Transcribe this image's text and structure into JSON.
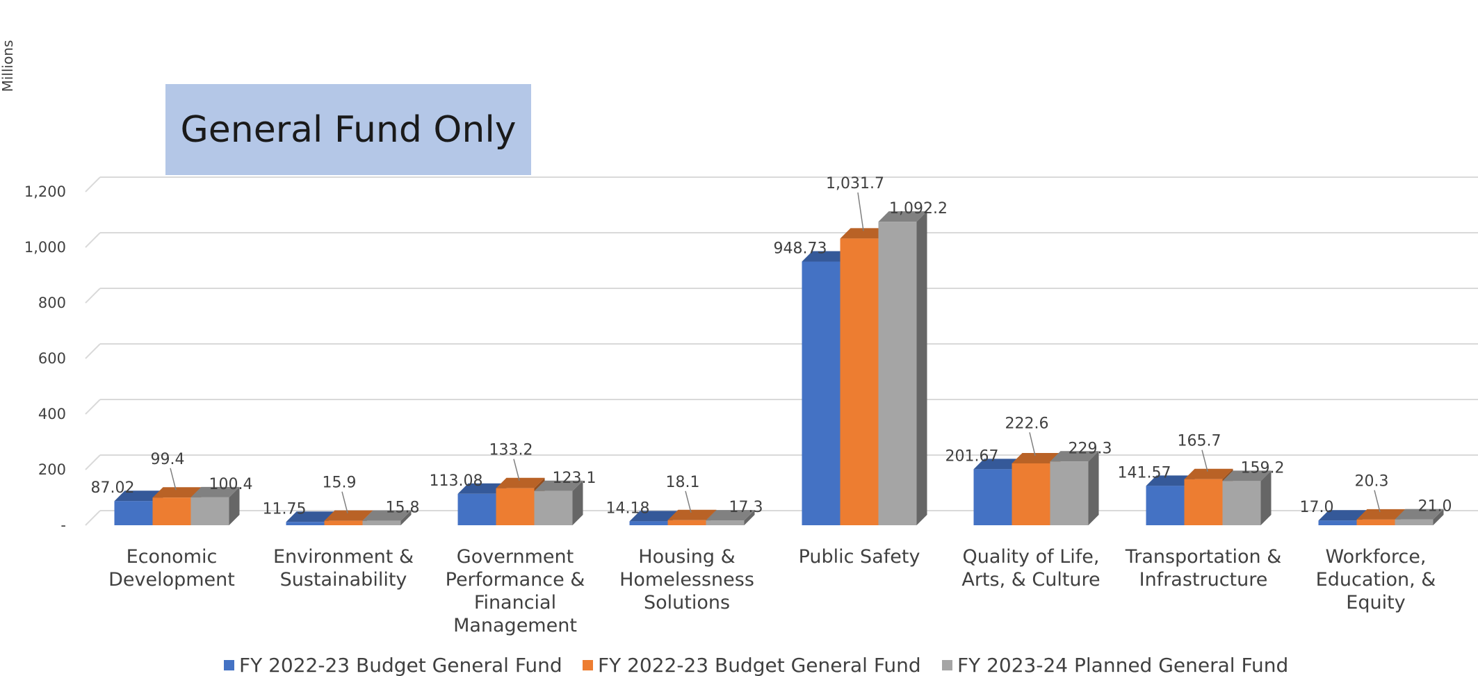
{
  "chart_data": {
    "type": "bar",
    "title": "General Fund Only",
    "ylabel": "Millions",
    "xlabel": "",
    "ylim": [
      0,
      1200
    ],
    "yticks": [
      0,
      200,
      400,
      600,
      800,
      1000,
      1200
    ],
    "ytick_labels": [
      "-",
      "200",
      "400",
      "600",
      "800",
      "1,000",
      "1,200"
    ],
    "grid": true,
    "legend_position": "bottom",
    "categories": [
      [
        "Economic",
        "Development"
      ],
      [
        "Environment &",
        "Sustainability"
      ],
      [
        "Government",
        "Performance &",
        "Financial",
        "Management"
      ],
      [
        "Housing &",
        "Homelessness",
        "Solutions"
      ],
      [
        "Public Safety"
      ],
      [
        "Quality of Life,",
        "Arts, & Culture"
      ],
      [
        "Transportation &",
        "Infrastructure"
      ],
      [
        "Workforce,",
        "Education, &",
        "Equity"
      ]
    ],
    "series": [
      {
        "name": "FY 2022-23 Budget General Fund",
        "color": "#4472C4",
        "values": [
          87.02,
          11.75,
          113.08,
          14.18,
          948.73,
          201.67,
          141.57,
          17.0
        ],
        "labels": [
          "87.02",
          "11.75",
          "113.08",
          "14.18",
          "948.73",
          "201.67",
          "141.57",
          "17.0"
        ]
      },
      {
        "name": "FY 2022-23 Budget General Fund",
        "color": "#ED7D31",
        "values": [
          99.4,
          15.9,
          133.2,
          18.1,
          1031.7,
          222.6,
          165.7,
          20.3
        ],
        "labels": [
          "99.4",
          "15.9",
          "133.2",
          "18.1",
          "1,031.7",
          "222.6",
          "165.7",
          "20.3"
        ]
      },
      {
        "name": "FY 2023-24 Planned General Fund",
        "color": "#A5A5A5",
        "values": [
          100.4,
          15.8,
          123.1,
          17.3,
          1092.2,
          229.3,
          159.2,
          21.0
        ],
        "labels": [
          "100.4",
          "15.8",
          "123.1",
          "17.3",
          "1,092.2",
          "229.3",
          "159.2",
          "21.0"
        ]
      }
    ]
  }
}
